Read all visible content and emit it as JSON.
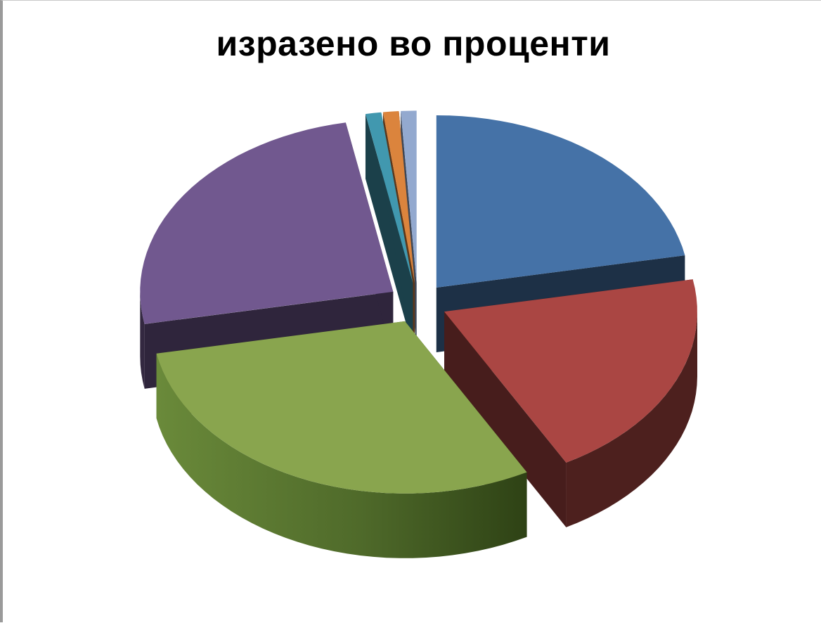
{
  "chart_data": {
    "type": "pie",
    "title": "изразено во проценти",
    "style": "3d-exploded",
    "legend": "none",
    "slices": [
      {
        "value": 22.0,
        "color": "#4572A7"
      },
      {
        "value": 20.0,
        "color": "#AA4643"
      },
      {
        "value": 30.0,
        "color": "#89A54E"
      },
      {
        "value": 25.0,
        "color": "#71588F"
      },
      {
        "value": 1.0,
        "color": "#4198AF"
      },
      {
        "value": 1.0,
        "color": "#DB843D"
      },
      {
        "value": 1.0,
        "color": "#93A9CF"
      }
    ]
  }
}
